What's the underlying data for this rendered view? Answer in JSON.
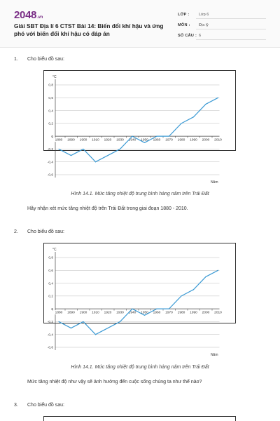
{
  "header": {
    "logo_main": "2048",
    "logo_tld": ".vn",
    "title": "Giải SBT Địa lí 6 CTST Bài 14: Biến đổi khí hậu và ứng phó với biến đổi khí hậu có đáp án",
    "meta": [
      {
        "key": "LỚP :",
        "value": "Lớp 6"
      },
      {
        "key": "MÔN :",
        "value": "Địa lý"
      },
      {
        "key": "SỐ CÂU :",
        "value": "6"
      }
    ]
  },
  "questions": [
    {
      "number": "1.",
      "prompt": "Cho biểu đồ sau:",
      "caption": "Hình 14.1. Mức tăng nhiệt độ trung bình hàng năm trên Trái Đất",
      "body": "Hãy nhận xét mức tăng nhiệt độ trên Trái Đất trong giai đoạn 1880 - 2010."
    },
    {
      "number": "2.",
      "prompt": "Cho biểu đồ sau:",
      "caption": "Hình 14.1. Mức tăng nhiệt độ trung bình hàng năm trên Trái Đất",
      "body": "Mức tăng nhiệt độ như vậy sẽ ảnh hưởng đến cuộc sống chúng ta như thế nào?"
    },
    {
      "number": "3.",
      "prompt": "Cho biểu đồ sau:"
    }
  ],
  "chart_data": [
    {
      "type": "line",
      "ylabel": "°C",
      "xlabel": "Năm",
      "ylim": [
        -0.6,
        0.8
      ],
      "y_ticks": [
        "0,8",
        "0,6",
        "0,4",
        "0,2",
        "0",
        "-0,2",
        "-0,4",
        "-0,6"
      ],
      "y_tick_values": [
        0.8,
        0.6,
        0.4,
        0.2,
        0,
        -0.2,
        -0.4,
        -0.6
      ],
      "x": [
        1880,
        1890,
        1900,
        1910,
        1920,
        1930,
        1940,
        1950,
        1960,
        1970,
        1980,
        1990,
        2000,
        2010
      ],
      "x_tick_labels": [
        "1880",
        "1890",
        "1900",
        "1910",
        "1920",
        "1930",
        "1940",
        "1950",
        "1960",
        "1970",
        "1980",
        "1990",
        "2000",
        "2010"
      ],
      "values": [
        -0.2,
        -0.3,
        -0.2,
        -0.4,
        -0.3,
        -0.2,
        0,
        -0.1,
        0,
        0,
        0.2,
        0.3,
        0.5,
        0.6
      ],
      "line_color": "#3b9ad4",
      "grid": true
    },
    {
      "type": "line",
      "ylabel": "°C",
      "xlabel": "Năm",
      "ylim": [
        -0.6,
        0.8
      ],
      "y_ticks": [
        "0,8",
        "0,6",
        "0,4",
        "0,2",
        "0",
        "-0,2",
        "-0,4",
        "-0,6"
      ],
      "y_tick_values": [
        0.8,
        0.6,
        0.4,
        0.2,
        0,
        -0.2,
        -0.4,
        -0.6
      ],
      "x": [
        1880,
        1890,
        1900,
        1910,
        1920,
        1930,
        1940,
        1950,
        1960,
        1970,
        1980,
        1990,
        2000,
        2010
      ],
      "x_tick_labels": [
        "1880",
        "1890",
        "1900",
        "1910",
        "1920",
        "1930",
        "1940",
        "1950",
        "1960",
        "1970",
        "1980",
        "1990",
        "2000",
        "2010"
      ],
      "values": [
        -0.2,
        -0.3,
        -0.2,
        -0.4,
        -0.3,
        -0.2,
        0,
        -0.1,
        0,
        0,
        0.2,
        0.3,
        0.5,
        0.6
      ],
      "line_color": "#3b9ad4",
      "grid": true
    }
  ]
}
